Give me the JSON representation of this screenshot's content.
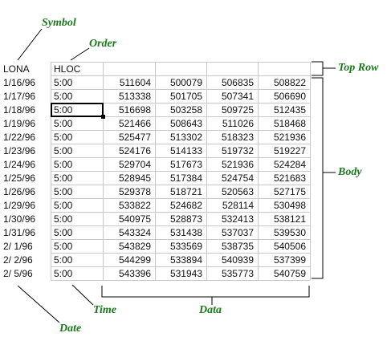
{
  "annotations": {
    "symbol": "Symbol",
    "order": "Order",
    "top_row": "Top Row",
    "body": "Body",
    "time": "Time",
    "data": "Data",
    "date": "Date"
  },
  "sheet": {
    "header": [
      "LONA",
      "HLOC",
      "",
      "",
      "",
      ""
    ],
    "rows": [
      [
        "1/16/96",
        "5:00",
        "511604",
        "500079",
        "506835",
        "508822"
      ],
      [
        "1/17/96",
        "5:00",
        "513338",
        "501705",
        "507341",
        "506690"
      ],
      [
        "1/18/96",
        "5:00",
        "516698",
        "503258",
        "509725",
        "512435"
      ],
      [
        "1/19/96",
        "5:00",
        "521466",
        "508643",
        "511026",
        "518468"
      ],
      [
        "1/22/96",
        "5:00",
        "525477",
        "513302",
        "518323",
        "521936"
      ],
      [
        "1/23/96",
        "5:00",
        "524176",
        "514133",
        "519732",
        "519227"
      ],
      [
        "1/24/96",
        "5:00",
        "529704",
        "517673",
        "521936",
        "524284"
      ],
      [
        "1/25/96",
        "5:00",
        "528945",
        "517384",
        "524754",
        "521683"
      ],
      [
        "1/26/96",
        "5:00",
        "529378",
        "518721",
        "520563",
        "527175"
      ],
      [
        "1/29/96",
        "5:00",
        "533822",
        "524682",
        "528114",
        "530498"
      ],
      [
        "1/30/96",
        "5:00",
        "540975",
        "528873",
        "532413",
        "538121"
      ],
      [
        "1/31/96",
        "5:00",
        "543324",
        "531438",
        "537037",
        "539530"
      ],
      [
        "2/ 1/96",
        "5:00",
        "543829",
        "533569",
        "538735",
        "540506"
      ],
      [
        "2/ 2/96",
        "5:00",
        "544299",
        "533894",
        "540939",
        "537399"
      ],
      [
        "2/ 5/96",
        "5:00",
        "543396",
        "531943",
        "535773",
        "540759"
      ]
    ],
    "active_cell": {
      "row": 2,
      "col": 1
    }
  },
  "colors": {
    "callout": "#1a7a1a",
    "grid": "#c8c8c8",
    "text": "#111111"
  }
}
